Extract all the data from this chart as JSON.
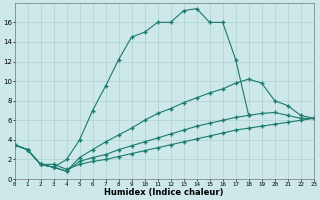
{
  "xlabel": "Humidex (Indice chaleur)",
  "background_color": "#cce8e8",
  "grid_color": "#b0d0d0",
  "line_color": "#1a7a6e",
  "xlim": [
    0,
    23
  ],
  "ylim": [
    0,
    18
  ],
  "yticks": [
    0,
    2,
    4,
    6,
    8,
    10,
    12,
    14,
    16
  ],
  "xticks": [
    0,
    1,
    2,
    3,
    4,
    5,
    6,
    7,
    8,
    9,
    10,
    11,
    12,
    13,
    14,
    15,
    16,
    17,
    18,
    19,
    20,
    21,
    22,
    23
  ],
  "lines": [
    {
      "x": [
        0,
        1,
        2,
        3,
        4,
        5,
        6,
        7,
        8,
        9,
        10,
        11,
        12,
        13,
        14,
        15,
        16,
        17,
        18
      ],
      "y": [
        3.5,
        3.0,
        1.5,
        1.2,
        2.0,
        4.0,
        7.0,
        9.5,
        12.2,
        14.5,
        15.0,
        16.0,
        16.0,
        17.2,
        17.4,
        16.0,
        16.0,
        12.2,
        6.5
      ]
    },
    {
      "x": [
        0,
        1,
        2,
        3,
        4,
        5,
        6,
        7,
        8,
        9,
        10,
        11,
        12,
        13,
        14,
        15,
        16,
        17,
        18,
        19,
        20,
        21,
        22,
        23
      ],
      "y": [
        3.5,
        3.0,
        1.5,
        1.2,
        0.8,
        2.2,
        3.0,
        3.8,
        4.5,
        5.2,
        6.0,
        6.7,
        7.2,
        7.8,
        8.3,
        8.8,
        9.2,
        9.8,
        10.2,
        9.8,
        8.0,
        7.5,
        6.5,
        6.2
      ]
    },
    {
      "x": [
        0,
        1,
        2,
        3,
        4,
        5,
        6,
        7,
        8,
        9,
        10,
        11,
        12,
        13,
        14,
        15,
        16,
        17,
        18,
        19,
        20,
        21,
        22,
        23
      ],
      "y": [
        3.5,
        3.0,
        1.5,
        1.2,
        0.8,
        1.8,
        2.2,
        2.5,
        3.0,
        3.4,
        3.8,
        4.2,
        4.6,
        5.0,
        5.4,
        5.7,
        6.0,
        6.3,
        6.5,
        6.7,
        6.8,
        6.5,
        6.2,
        6.2
      ]
    },
    {
      "x": [
        0,
        1,
        2,
        3,
        4,
        5,
        6,
        7,
        8,
        9,
        10,
        11,
        12,
        13,
        14,
        15,
        16,
        17,
        18,
        19,
        20,
        21,
        22,
        23
      ],
      "y": [
        3.5,
        3.0,
        1.5,
        1.5,
        1.0,
        1.5,
        1.8,
        2.0,
        2.3,
        2.6,
        2.9,
        3.2,
        3.5,
        3.8,
        4.1,
        4.4,
        4.7,
        5.0,
        5.2,
        5.4,
        5.6,
        5.8,
        6.0,
        6.2
      ]
    }
  ]
}
